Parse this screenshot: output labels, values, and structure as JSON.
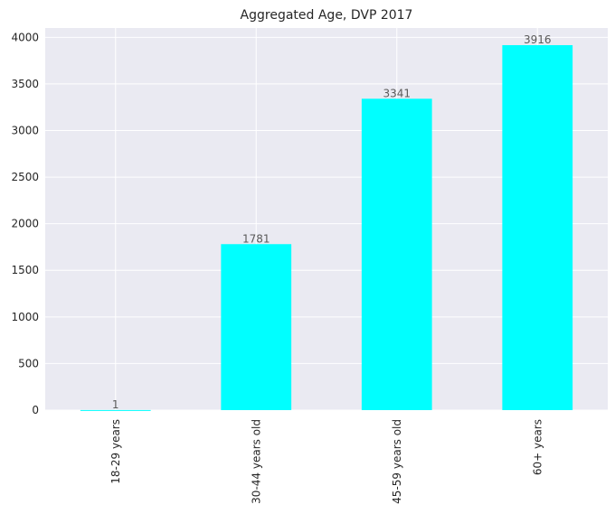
{
  "chart_data": {
    "type": "bar",
    "title": "Aggregated Age, DVP 2017",
    "xlabel": "",
    "ylabel": "",
    "categories": [
      "18-29 years",
      "30-44 years old",
      "45-59 years old",
      "60+ years"
    ],
    "values": [
      1,
      1781,
      3341,
      3916
    ],
    "data_labels": [
      "1",
      "1781",
      "3341",
      "3916"
    ],
    "ylim": [
      0,
      4100
    ],
    "yticks": [
      0,
      500,
      1000,
      1500,
      2000,
      2500,
      3000,
      3500,
      4000
    ],
    "grid": true,
    "bar_color": "#00ffff",
    "plot_background": "#eaeaf2",
    "grid_color": "#ffffff"
  }
}
